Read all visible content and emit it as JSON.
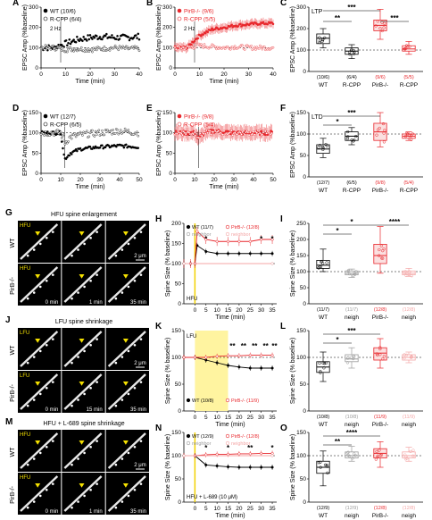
{
  "panels": {
    "A": {
      "letter": "A",
      "legend": [
        "WT (10/6)",
        "R-CPP (6/4)"
      ],
      "ylabel": "EPSC Amp (%baseline)",
      "xlabel": "Time (min)",
      "stim": "2 Hz",
      "yticks": [
        "0",
        "100",
        "200",
        "300"
      ],
      "xticks": [
        "0",
        "10",
        "20",
        "30",
        "40"
      ]
    },
    "B": {
      "letter": "B",
      "legend": [
        "PirB-/- (9/6)",
        "R-CPP (5/5)"
      ],
      "ylabel": "EPSC Amp (%baseline)",
      "xlabel": "Time (min)",
      "stim": "2 Hz",
      "yticks": [
        "0",
        "100",
        "200",
        "300"
      ],
      "xticks": [
        "0",
        "10",
        "20",
        "30",
        "40"
      ]
    },
    "C": {
      "letter": "C",
      "title": "LTP",
      "ylabel": "EPSC Amp (%baseline)",
      "yticks": [
        "0",
        "100",
        "200",
        "300"
      ],
      "cats": [
        "WT",
        "R-CPP",
        "PirB-/-",
        "R-CPP"
      ],
      "ns": [
        "(10/6)",
        "(6/4)",
        "(9/6)",
        "(5/5)"
      ],
      "sig": [
        "***",
        "**",
        "***"
      ]
    },
    "D": {
      "letter": "D",
      "legend": [
        "WT (12/7)",
        "R-CPP (6/5)"
      ],
      "ylabel": "EPSC Amp (%baseline)",
      "xlabel": "Time (min)",
      "stim": "1 Hz",
      "yticks": [
        "0",
        "50",
        "100",
        "150"
      ],
      "xticks": [
        "0",
        "10",
        "20",
        "30",
        "40",
        "50"
      ]
    },
    "E": {
      "letter": "E",
      "legend": [
        "PirB-/- (9/8)",
        "R-CPP (5/4)"
      ],
      "ylabel": "EPSC Amp (%baseline)",
      "xlabel": "Time (min)",
      "stim": "1 Hz",
      "yticks": [
        "0",
        "50",
        "100",
        "150"
      ],
      "xticks": [
        "0",
        "10",
        "20",
        "30",
        "40",
        "50"
      ]
    },
    "F": {
      "letter": "F",
      "title": "LTD",
      "ylabel": "EPSC Amp (%baseline)",
      "yticks": [
        "0",
        "50",
        "100",
        "150"
      ],
      "cats": [
        "WT",
        "R-CPP",
        "PirB-/-",
        "R-CPP"
      ],
      "ns": [
        "(12/7)",
        "(6/5)",
        "(9/8)",
        "(5/4)"
      ],
      "sig": [
        "***",
        "*"
      ]
    },
    "G": {
      "letter": "G",
      "title": "HFU spine enlargement",
      "rows": [
        "WT",
        "PirB-/-"
      ],
      "stim": "HFU",
      "times": [
        "0 min",
        "1 min",
        "35 min"
      ],
      "scale": "2 μm"
    },
    "H": {
      "letter": "H",
      "legend": [
        "WT (11/7)",
        "PirB-/- (12/8)",
        "neighbor",
        "neighbor"
      ],
      "ylabel": "Spine Size (% baseline)",
      "xlabel": "Time (min)",
      "stim": "HFU",
      "yticks": [
        "0",
        "50",
        "100",
        "150",
        "200"
      ],
      "xticks": [
        "0",
        "5",
        "10",
        "15",
        "20",
        "25",
        "30",
        "35"
      ],
      "stars": [
        "*",
        "*",
        "*"
      ]
    },
    "I": {
      "letter": "I",
      "ylabel": "Spine Size (% baseline)",
      "yticks": [
        "0",
        "50",
        "100",
        "150",
        "200",
        "250"
      ],
      "cats": [
        "WT",
        "neigh",
        "PirB-/-",
        "neigh"
      ],
      "ns": [
        "(11/7)",
        "(11/7)",
        "(12/8)",
        "(12/8)"
      ],
      "sig": [
        "*",
        "*",
        "****"
      ]
    },
    "J": {
      "letter": "J",
      "title": "LFU spine shrinkage",
      "rows": [
        "WT",
        "PirB-/-"
      ],
      "stim": "LFU",
      "times": [
        "0 min",
        "15 min",
        "35 min"
      ],
      "scale": "2 μm"
    },
    "K": {
      "letter": "K",
      "legend": [
        "WT (10/8)",
        "PirB-/- (11/9)"
      ],
      "ylabel": "Spine Size (% baseline)",
      "xlabel": "Time (min)",
      "stim": "LFU",
      "yticks": [
        "0",
        "50",
        "100",
        "150"
      ],
      "xticks": [
        "0",
        "5",
        "10",
        "15",
        "20",
        "25",
        "30",
        "35"
      ],
      "stars": [
        "**",
        "**",
        "**",
        "**",
        "**"
      ]
    },
    "L": {
      "letter": "L",
      "ylabel": "Spine Size (% baseline)",
      "yticks": [
        "0",
        "50",
        "100",
        "150"
      ],
      "cats": [
        "WT",
        "neigh",
        "PirB-/-",
        "neigh"
      ],
      "ns": [
        "(10/8)",
        "(10/8)",
        "(11/9)",
        "(11/9)"
      ],
      "sig": [
        "***",
        "*"
      ]
    },
    "M": {
      "letter": "M",
      "title": "HFU + L-689 spine shrinkage",
      "rows": [
        "WT",
        "PirB-/-"
      ],
      "stim": "HFU",
      "times": [
        "0 min",
        "1 min",
        "35 min"
      ],
      "scale": "2 μm"
    },
    "N": {
      "letter": "N",
      "legend": [
        "WT (12/9)",
        "PirB-/- (12/8)",
        "neighbor",
        "neighbor"
      ],
      "ylabel": "Spine Size (% baseline)",
      "xlabel": "Time (min)",
      "stim": "HFU + L-689 (10 μM)",
      "yticks": [
        "0",
        "50",
        "100",
        "150"
      ],
      "xticks": [
        "0",
        "5",
        "10",
        "15",
        "20",
        "25",
        "30",
        "35"
      ],
      "stars": [
        "*",
        "*",
        "**",
        "*"
      ]
    },
    "O": {
      "letter": "O",
      "ylabel": "Spine Size (% baseline)",
      "yticks": [
        "0",
        "50",
        "100",
        "150"
      ],
      "cats": [
        "WT",
        "neigh",
        "PirB-/-",
        "neigh"
      ],
      "ns": [
        "(12/9)",
        "(12/9)",
        "(12/8)",
        "(12/8)"
      ],
      "sig": [
        "****",
        "**"
      ]
    }
  },
  "colors": {
    "wt": "#000000",
    "ko": "#e8262b",
    "pale": "#f4a6a6",
    "gray": "#9a9a9a",
    "yellow": "#fff4a0"
  },
  "chart_data": [
    {
      "panel": "A",
      "type": "scatter",
      "xlabel": "Time (min)",
      "ylabel": "EPSC Amp (%baseline)",
      "xlim": [
        0,
        40
      ],
      "ylim": [
        0,
        300
      ],
      "series": [
        {
          "name": "WT (10/6)",
          "x": [
            0,
            5,
            10,
            15,
            20,
            25,
            30,
            35,
            40
          ],
          "y": [
            100,
            100,
            120,
            140,
            150,
            155,
            150,
            150,
            155
          ]
        },
        {
          "name": "R-CPP (6/4)",
          "x": [
            0,
            5,
            10,
            15,
            20,
            25,
            30,
            35,
            40
          ],
          "y": [
            100,
            100,
            90,
            95,
            90,
            95,
            100,
            95,
            95
          ]
        }
      ]
    },
    {
      "panel": "B",
      "type": "scatter",
      "xlabel": "Time (min)",
      "ylabel": "EPSC Amp (%baseline)",
      "xlim": [
        0,
        40
      ],
      "ylim": [
        0,
        300
      ],
      "series": [
        {
          "name": "PirB-/- (9/6)",
          "x": [
            0,
            5,
            10,
            15,
            20,
            25,
            30,
            35,
            40
          ],
          "y": [
            100,
            100,
            160,
            190,
            200,
            210,
            215,
            220,
            220
          ]
        },
        {
          "name": "R-CPP (5/5)",
          "x": [
            0,
            5,
            10,
            15,
            20,
            25,
            30,
            35,
            40
          ],
          "y": [
            100,
            100,
            110,
            105,
            100,
            105,
            100,
            100,
            100
          ]
        }
      ]
    },
    {
      "panel": "C",
      "type": "box",
      "title": "LTP",
      "categories": [
        "WT",
        "R-CPP",
        "PirB-/-",
        "R-CPP"
      ],
      "ylabel": "EPSC Amp (%baseline)",
      "ylim": [
        0,
        300
      ],
      "medians": [
        155,
        95,
        215,
        105
      ],
      "q1": [
        130,
        80,
        190,
        95
      ],
      "q3": [
        175,
        110,
        240,
        120
      ],
      "min": [
        110,
        60,
        150,
        80
      ],
      "max": [
        200,
        125,
        290,
        140
      ]
    },
    {
      "panel": "D",
      "type": "scatter",
      "xlabel": "Time (min)",
      "ylabel": "EPSC Amp (%baseline)",
      "xlim": [
        0,
        50
      ],
      "ylim": [
        0,
        150
      ],
      "series": [
        {
          "name": "WT (12/7)",
          "x": [
            0,
            10,
            12,
            15,
            20,
            30,
            40,
            50
          ],
          "y": [
            100,
            100,
            35,
            50,
            60,
            65,
            68,
            65
          ]
        },
        {
          "name": "R-CPP (6/5)",
          "x": [
            0,
            10,
            12,
            15,
            20,
            30,
            40,
            50
          ],
          "y": [
            100,
            100,
            75,
            90,
            95,
            100,
            105,
            100
          ]
        }
      ]
    },
    {
      "panel": "E",
      "type": "scatter",
      "xlabel": "Time (min)",
      "ylabel": "EPSC Amp (%baseline)",
      "xlim": [
        0,
        50
      ],
      "ylim": [
        0,
        150
      ],
      "series": [
        {
          "name": "PirB-/- (9/8)",
          "x": [
            0,
            10,
            12,
            15,
            20,
            30,
            40,
            50
          ],
          "y": [
            100,
            100,
            85,
            100,
            105,
            100,
            100,
            100
          ]
        },
        {
          "name": "R-CPP (5/4)",
          "x": [
            0,
            10,
            12,
            15,
            20,
            30,
            40,
            50
          ],
          "y": [
            100,
            100,
            90,
            100,
            100,
            100,
            100,
            100
          ]
        }
      ]
    },
    {
      "panel": "F",
      "type": "box",
      "title": "LTD",
      "categories": [
        "WT",
        "R-CPP",
        "PirB-/-",
        "R-CPP"
      ],
      "ylabel": "EPSC Amp (%baseline)",
      "ylim": [
        0,
        150
      ],
      "medians": [
        65,
        95,
        105,
        95
      ],
      "q1": [
        55,
        85,
        85,
        90
      ],
      "q3": [
        75,
        105,
        125,
        100
      ],
      "min": [
        45,
        75,
        70,
        85
      ],
      "max": [
        90,
        115,
        150,
        105
      ]
    },
    {
      "panel": "H",
      "type": "line",
      "xlabel": "Time (min)",
      "ylabel": "Spine Size (% baseline)",
      "xlim": [
        -5,
        37
      ],
      "ylim": [
        0,
        200
      ],
      "series": [
        {
          "name": "WT (11/7)",
          "x": [
            -5,
            -2,
            0,
            1,
            5,
            10,
            15,
            20,
            25,
            30,
            35
          ],
          "y": [
            100,
            100,
            100,
            145,
            130,
            125,
            125,
            125,
            125,
            125,
            125
          ]
        },
        {
          "name": "PirB-/- (12/8)",
          "x": [
            -5,
            -2,
            0,
            1,
            5,
            10,
            15,
            20,
            25,
            30,
            35
          ],
          "y": [
            100,
            100,
            100,
            180,
            160,
            155,
            155,
            155,
            155,
            160,
            160
          ]
        },
        {
          "name": "neighbor",
          "x": [
            -5,
            35
          ],
          "y": [
            100,
            100
          ]
        },
        {
          "name": "neighbor",
          "x": [
            -5,
            35
          ],
          "y": [
            100,
            100
          ]
        }
      ]
    },
    {
      "panel": "I",
      "type": "box",
      "categories": [
        "WT",
        "neigh",
        "PirB-/-",
        "neigh"
      ],
      "ylabel": "Spine Size (% baseline)",
      "ylim": [
        0,
        250
      ],
      "medians": [
        120,
        95,
        150,
        95
      ],
      "q1": [
        110,
        90,
        125,
        90
      ],
      "q3": [
        135,
        102,
        185,
        102
      ],
      "min": [
        100,
        82,
        95,
        85
      ],
      "max": [
        170,
        108,
        240,
        110
      ]
    },
    {
      "panel": "K",
      "type": "line",
      "xlabel": "Time (min)",
      "ylabel": "Spine Size (% baseline)",
      "xlim": [
        -5,
        37
      ],
      "ylim": [
        0,
        150
      ],
      "series": [
        {
          "name": "WT (10/8)",
          "x": [
            -5,
            0,
            5,
            10,
            15,
            20,
            25,
            30,
            35
          ],
          "y": [
            100,
            100,
            95,
            90,
            85,
            82,
            80,
            80,
            80
          ]
        },
        {
          "name": "PirB-/- (11/9)",
          "x": [
            -5,
            0,
            5,
            10,
            15,
            20,
            25,
            30,
            35
          ],
          "y": [
            100,
            100,
            100,
            102,
            103,
            103,
            104,
            104,
            104
          ]
        }
      ]
    },
    {
      "panel": "L",
      "type": "box",
      "categories": [
        "WT",
        "neigh",
        "PirB-/-",
        "neigh"
      ],
      "ylabel": "Spine Size (% baseline)",
      "ylim": [
        0,
        150
      ],
      "medians": [
        82,
        97,
        108,
        100
      ],
      "q1": [
        72,
        92,
        95,
        95
      ],
      "q3": [
        92,
        105,
        118,
        105
      ],
      "min": [
        55,
        80,
        80,
        90
      ],
      "max": [
        110,
        118,
        135,
        110
      ]
    },
    {
      "panel": "N",
      "type": "line",
      "xlabel": "Time (min)",
      "ylabel": "Spine Size (% baseline)",
      "xlim": [
        -5,
        37
      ],
      "ylim": [
        0,
        150
      ],
      "series": [
        {
          "name": "WT (12/9)",
          "x": [
            -5,
            0,
            5,
            10,
            15,
            20,
            25,
            30,
            35
          ],
          "y": [
            100,
            100,
            80,
            78,
            76,
            75,
            75,
            75,
            75
          ]
        },
        {
          "name": "PirB-/- (12/8)",
          "x": [
            -5,
            0,
            5,
            10,
            15,
            20,
            25,
            30,
            35
          ],
          "y": [
            100,
            100,
            102,
            103,
            103,
            104,
            104,
            105,
            105
          ]
        },
        {
          "name": "neighbor",
          "x": [
            -5,
            35
          ],
          "y": [
            100,
            100
          ]
        },
        {
          "name": "neighbor",
          "x": [
            -5,
            35
          ],
          "y": [
            100,
            100
          ]
        }
      ]
    },
    {
      "panel": "O",
      "type": "box",
      "categories": [
        "WT",
        "neigh",
        "PirB-/-",
        "neigh"
      ],
      "ylabel": "Spine Size (% baseline)",
      "ylim": [
        0,
        150
      ],
      "medians": [
        75,
        100,
        105,
        100
      ],
      "q1": [
        62,
        95,
        95,
        95
      ],
      "q3": [
        88,
        108,
        115,
        108
      ],
      "min": [
        35,
        88,
        75,
        88
      ],
      "max": [
        110,
        120,
        130,
        118
      ]
    }
  ]
}
